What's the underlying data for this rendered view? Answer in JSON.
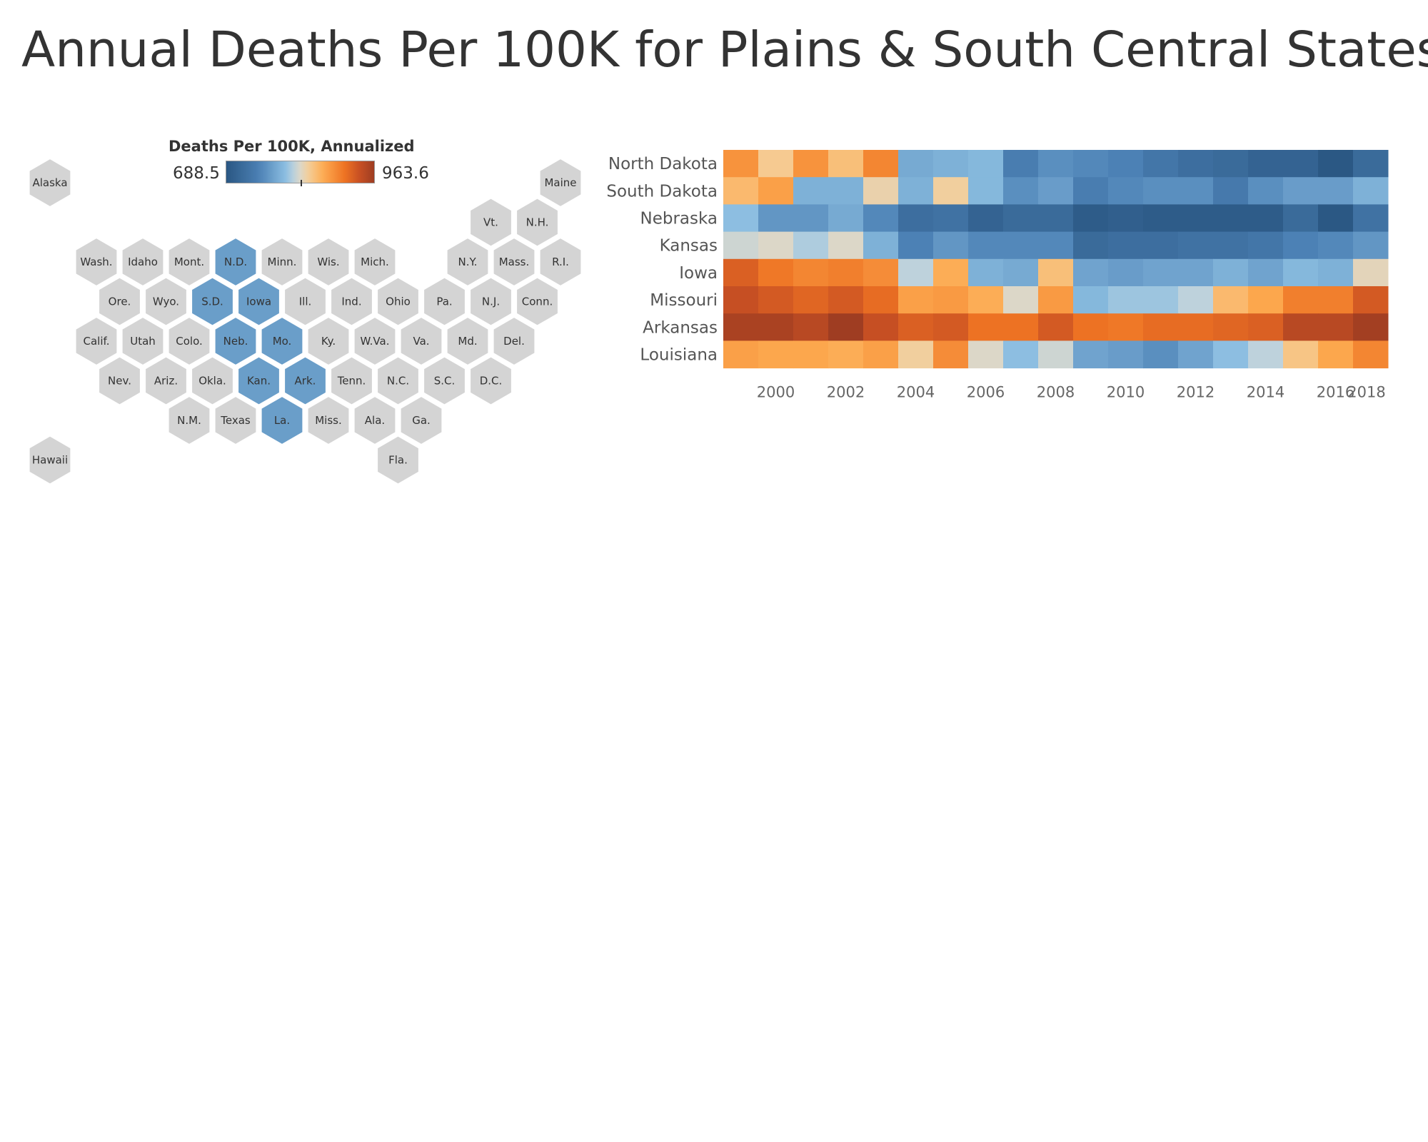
{
  "title": "Annual Deaths Per 100K for Plains & South Central States",
  "colors": {
    "low": "#2a5783",
    "mid_low": "#a8d0e8",
    "mid_high": "#ffbf6e",
    "high": "#9e3d22",
    "neutral_hex": "#d4d4d4",
    "highlight_hex": "#6a9ec9"
  },
  "legend": {
    "title": "Deaths Per 100K, Annualized",
    "min_label": "688.5",
    "max_label": "963.6",
    "min": 688.5,
    "max": 963.6,
    "center": 815
  },
  "hex_map": {
    "states": [
      {
        "abbr": "Alaska",
        "col": 0,
        "row": 0,
        "highlight": false
      },
      {
        "abbr": "Maine",
        "col": 11,
        "row": 0,
        "highlight": false
      },
      {
        "abbr": "Vt.",
        "col": 9.5,
        "row": 1,
        "highlight": false
      },
      {
        "abbr": "N.H.",
        "col": 10.5,
        "row": 1,
        "highlight": false
      },
      {
        "abbr": "Wash.",
        "col": 1,
        "row": 2,
        "highlight": false
      },
      {
        "abbr": "Idaho",
        "col": 2,
        "row": 2,
        "highlight": false
      },
      {
        "abbr": "Mont.",
        "col": 3,
        "row": 2,
        "highlight": false
      },
      {
        "abbr": "N.D.",
        "col": 4,
        "row": 2,
        "highlight": true
      },
      {
        "abbr": "Minn.",
        "col": 5,
        "row": 2,
        "highlight": false
      },
      {
        "abbr": "Wis.",
        "col": 6,
        "row": 2,
        "highlight": false
      },
      {
        "abbr": "Mich.",
        "col": 7,
        "row": 2,
        "highlight": false
      },
      {
        "abbr": "N.Y.",
        "col": 9,
        "row": 2,
        "highlight": false
      },
      {
        "abbr": "Mass.",
        "col": 10,
        "row": 2,
        "highlight": false
      },
      {
        "abbr": "R.I.",
        "col": 11,
        "row": 2,
        "highlight": false
      },
      {
        "abbr": "Ore.",
        "col": 1.5,
        "row": 3,
        "highlight": false
      },
      {
        "abbr": "Wyo.",
        "col": 2.5,
        "row": 3,
        "highlight": false
      },
      {
        "abbr": "S.D.",
        "col": 3.5,
        "row": 3,
        "highlight": true
      },
      {
        "abbr": "Iowa",
        "col": 4.5,
        "row": 3,
        "highlight": true
      },
      {
        "abbr": "Ill.",
        "col": 5.5,
        "row": 3,
        "highlight": false
      },
      {
        "abbr": "Ind.",
        "col": 6.5,
        "row": 3,
        "highlight": false
      },
      {
        "abbr": "Ohio",
        "col": 7.5,
        "row": 3,
        "highlight": false
      },
      {
        "abbr": "Pa.",
        "col": 8.5,
        "row": 3,
        "highlight": false
      },
      {
        "abbr": "N.J.",
        "col": 9.5,
        "row": 3,
        "highlight": false
      },
      {
        "abbr": "Conn.",
        "col": 10.5,
        "row": 3,
        "highlight": false
      },
      {
        "abbr": "Calif.",
        "col": 1,
        "row": 4,
        "highlight": false
      },
      {
        "abbr": "Utah",
        "col": 2,
        "row": 4,
        "highlight": false
      },
      {
        "abbr": "Colo.",
        "col": 3,
        "row": 4,
        "highlight": false
      },
      {
        "abbr": "Neb.",
        "col": 4,
        "row": 4,
        "highlight": true
      },
      {
        "abbr": "Mo.",
        "col": 5,
        "row": 4,
        "highlight": true
      },
      {
        "abbr": "Ky.",
        "col": 6,
        "row": 4,
        "highlight": false
      },
      {
        "abbr": "W.Va.",
        "col": 7,
        "row": 4,
        "highlight": false
      },
      {
        "abbr": "Va.",
        "col": 8,
        "row": 4,
        "highlight": false
      },
      {
        "abbr": "Md.",
        "col": 9,
        "row": 4,
        "highlight": false
      },
      {
        "abbr": "Del.",
        "col": 10,
        "row": 4,
        "highlight": false
      },
      {
        "abbr": "Nev.",
        "col": 1.5,
        "row": 5,
        "highlight": false
      },
      {
        "abbr": "Ariz.",
        "col": 2.5,
        "row": 5,
        "highlight": false
      },
      {
        "abbr": "Okla.",
        "col": 3.5,
        "row": 5,
        "highlight": false
      },
      {
        "abbr": "Kan.",
        "col": 4.5,
        "row": 5,
        "highlight": true
      },
      {
        "abbr": "Ark.",
        "col": 5.5,
        "row": 5,
        "highlight": true
      },
      {
        "abbr": "Tenn.",
        "col": 6.5,
        "row": 5,
        "highlight": false
      },
      {
        "abbr": "N.C.",
        "col": 7.5,
        "row": 5,
        "highlight": false
      },
      {
        "abbr": "S.C.",
        "col": 8.5,
        "row": 5,
        "highlight": false
      },
      {
        "abbr": "D.C.",
        "col": 9.5,
        "row": 5,
        "highlight": false
      },
      {
        "abbr": "N.M.",
        "col": 3,
        "row": 6,
        "highlight": false
      },
      {
        "abbr": "Texas",
        "col": 4,
        "row": 6,
        "highlight": false
      },
      {
        "abbr": "La.",
        "col": 5,
        "row": 6,
        "highlight": true
      },
      {
        "abbr": "Miss.",
        "col": 6,
        "row": 6,
        "highlight": false
      },
      {
        "abbr": "Ala.",
        "col": 7,
        "row": 6,
        "highlight": false
      },
      {
        "abbr": "Ga.",
        "col": 8,
        "row": 6,
        "highlight": false
      },
      {
        "abbr": "Hawaii",
        "col": 0,
        "row": 7,
        "highlight": false
      },
      {
        "abbr": "Fla.",
        "col": 7.5,
        "row": 7,
        "highlight": false
      }
    ]
  },
  "chart_data": {
    "type": "heatmap",
    "title": "Annual Deaths Per 100K for Plains & South Central States",
    "x": [
      1999,
      2000,
      2001,
      2002,
      2003,
      2004,
      2005,
      2006,
      2007,
      2008,
      2009,
      2010,
      2011,
      2012,
      2013,
      2014,
      2015,
      2016,
      2017
    ],
    "x_tick_labels": [
      "2000",
      "2002",
      "2004",
      "2006",
      "2008",
      "2010",
      "2012",
      "2014",
      "2016",
      "2018"
    ],
    "x_tick_values": [
      2000,
      2002,
      2004,
      2006,
      2008,
      2010,
      2012,
      2014,
      2016,
      2018
    ],
    "y": [
      "North Dakota",
      "South Dakota",
      "Nebraska",
      "Kansas",
      "Iowa",
      "Missouri",
      "Arkansas",
      "Louisiana"
    ],
    "values": [
      [
        880,
        835,
        880,
        845,
        890,
        775,
        780,
        785,
        740,
        755,
        750,
        745,
        730,
        720,
        715,
        705,
        705,
        690,
        715
      ],
      [
        850,
        870,
        780,
        780,
        825,
        780,
        830,
        785,
        755,
        765,
        740,
        750,
        755,
        755,
        735,
        755,
        765,
        765,
        780
      ],
      [
        790,
        760,
        760,
        775,
        750,
        720,
        725,
        705,
        715,
        715,
        695,
        700,
        695,
        695,
        695,
        695,
        715,
        690,
        725
      ],
      [
        810,
        815,
        800,
        815,
        780,
        745,
        760,
        750,
        750,
        750,
        715,
        720,
        720,
        725,
        725,
        730,
        745,
        750,
        760
      ],
      [
        920,
        900,
        890,
        895,
        885,
        805,
        860,
        780,
        775,
        845,
        770,
        765,
        770,
        770,
        780,
        770,
        785,
        780,
        820
      ],
      [
        935,
        925,
        915,
        925,
        910,
        870,
        875,
        860,
        815,
        875,
        785,
        795,
        795,
        805,
        850,
        865,
        895,
        895,
        925
      ],
      [
        955,
        955,
        945,
        963,
        935,
        920,
        925,
        905,
        905,
        925,
        905,
        900,
        910,
        910,
        915,
        920,
        945,
        945,
        960
      ],
      [
        870,
        865,
        865,
        860,
        870,
        830,
        885,
        815,
        790,
        810,
        770,
        765,
        755,
        770,
        790,
        805,
        840,
        865,
        890
      ]
    ],
    "color_range": [
      688.5,
      963.6
    ]
  }
}
